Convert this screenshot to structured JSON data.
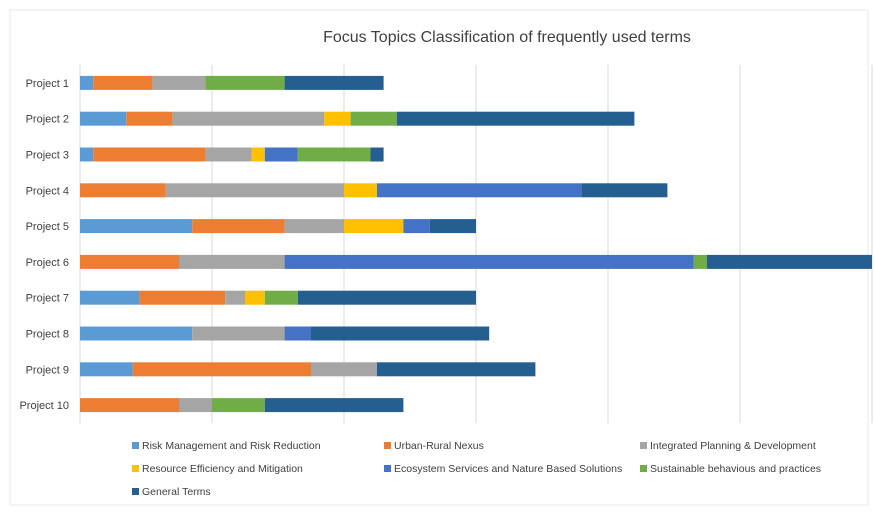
{
  "chart_data": {
    "type": "bar",
    "orientation": "horizontal",
    "stacked": true,
    "title": "Focus Topics Classification of frequently used terms",
    "categories": [
      "Project 1",
      "Project 2",
      "Project 3",
      "Project 4",
      "Project 5",
      "Project 6",
      "Project 7",
      "Project 8",
      "Project 9",
      "Project 10"
    ],
    "grid": true,
    "legend_position": "bottom",
    "xlim": [
      0,
      60
    ],
    "series": [
      {
        "name": "Risk Management and Risk Reduction",
        "color": "#5b9bd5",
        "values": [
          1,
          3.5,
          1,
          0,
          8.5,
          0,
          4.5,
          8.5,
          4,
          0
        ]
      },
      {
        "name": "Urban-Rural Nexus",
        "color": "#ed7d31",
        "values": [
          4.5,
          3.5,
          8.5,
          6.5,
          7,
          7.5,
          6.5,
          0,
          13.5,
          7.5
        ]
      },
      {
        "name": "Integrated Planning & Development",
        "color": "#a5a5a5",
        "values": [
          4,
          11.5,
          3.5,
          13.5,
          4.5,
          8,
          1.5,
          7,
          5,
          2.5
        ]
      },
      {
        "name": "Resource Efficiency and Mitigation",
        "color": "#ffc000",
        "values": [
          0,
          2,
          1,
          2.5,
          4.5,
          0,
          1.5,
          0,
          0,
          0
        ]
      },
      {
        "name": "Ecosystem Services and Nature Based Solutions",
        "color": "#4472c4",
        "values": [
          0,
          0,
          2.5,
          15.5,
          2,
          31,
          0,
          2,
          0,
          0
        ]
      },
      {
        "name": "Sustainable behavious and practices",
        "color": "#70ad47",
        "values": [
          6,
          3.5,
          5.5,
          0,
          0,
          1,
          2.5,
          0,
          0,
          4
        ]
      },
      {
        "name": "General Terms",
        "color": "#255e91",
        "values": [
          7.5,
          18,
          1,
          6.5,
          3.5,
          12.5,
          13.5,
          13.5,
          12,
          10.5
        ]
      }
    ]
  }
}
